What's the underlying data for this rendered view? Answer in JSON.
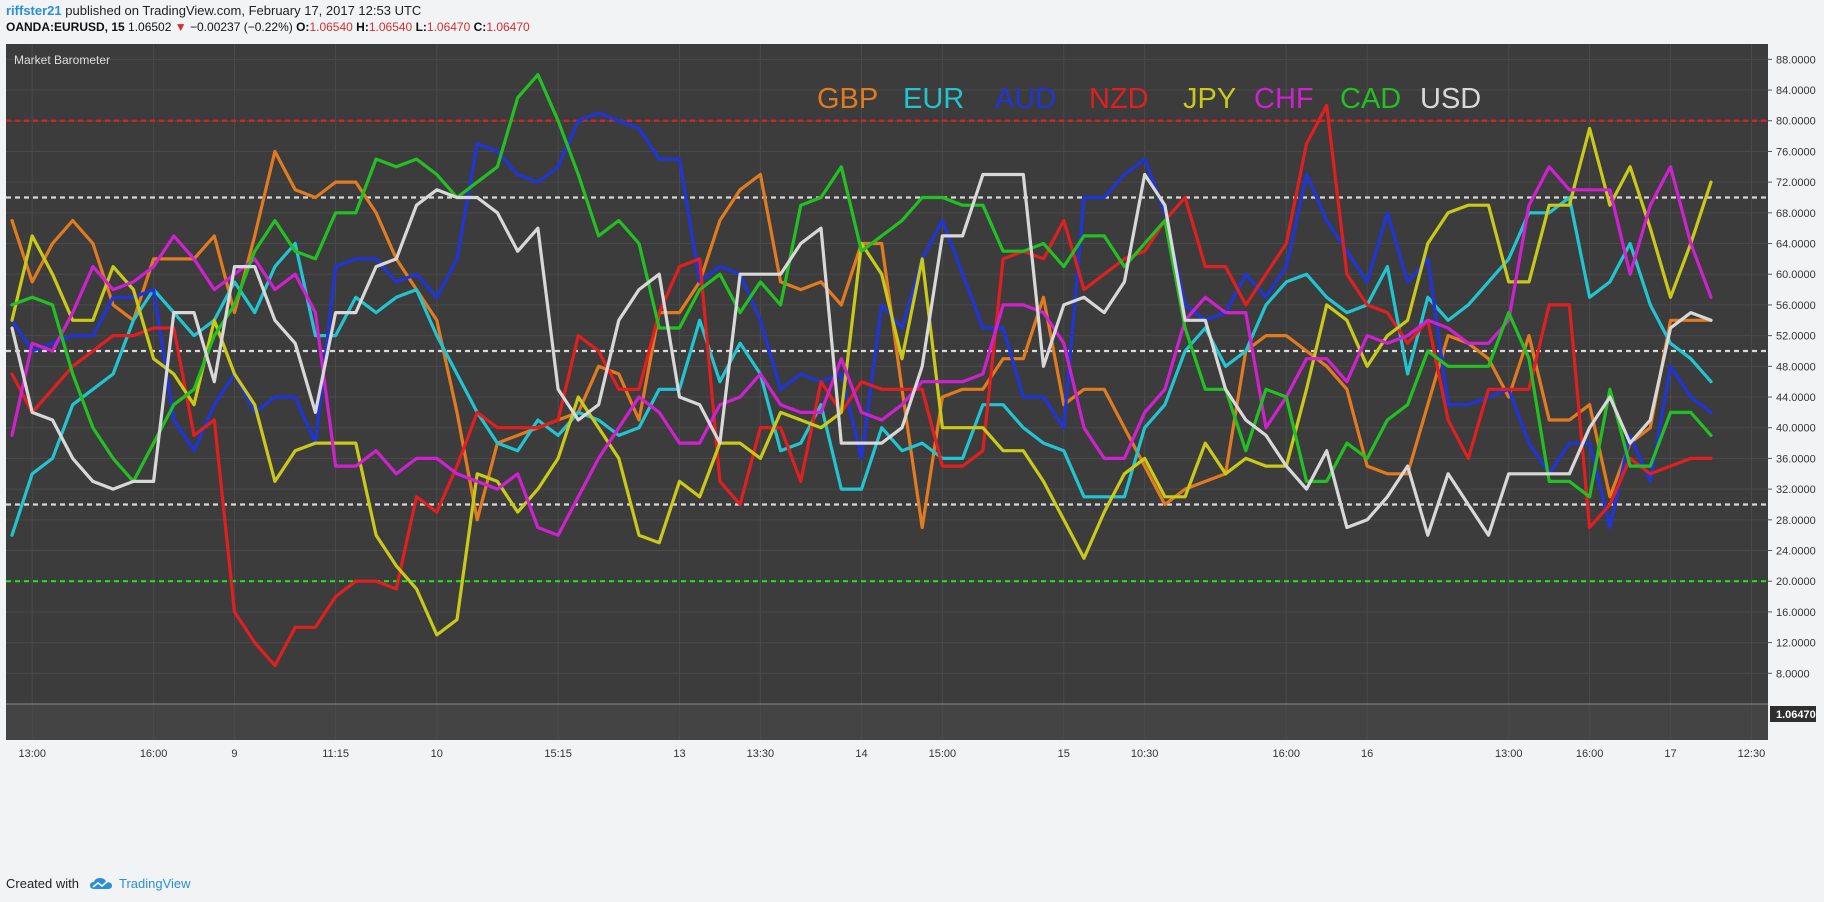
{
  "header": {
    "user": "riffster21",
    "published_text": "published on TradingView.com, February 17, 2017 12:53 UTC",
    "symbol": "OANDA:EURUSD, 15",
    "price": "1.06502",
    "down_arrow": "▼",
    "change": "−0.00237 (−0.22%)",
    "o_label": "O:",
    "o_val": "1.06540",
    "h_label": "H:",
    "h_val": "1.06540",
    "l_label": "L:",
    "l_val": "1.06470",
    "c_label": "C:",
    "c_val": "1.06470"
  },
  "footer": {
    "created_with": "Created with",
    "brand": "TradingView"
  },
  "colors": {
    "background": "#3c3c3c",
    "grid": "#4a4a4a",
    "axis_panel": "#f1f3f5",
    "line_80": "#e02020",
    "line_70_50_30": "#d8d8d8",
    "line_20": "#22dd22"
  },
  "chart_data": {
    "type": "line",
    "title": "Market Barometer",
    "price_tag": "1.06470",
    "ylim": [
      4,
      90
    ],
    "y_ticks": [
      "8.0000",
      "12.0000",
      "16.0000",
      "20.0000",
      "24.0000",
      "28.0000",
      "32.0000",
      "36.0000",
      "40.0000",
      "44.0000",
      "48.0000",
      "52.0000",
      "56.0000",
      "60.0000",
      "64.0000",
      "68.0000",
      "72.0000",
      "76.0000",
      "80.0000",
      "84.0000",
      "88.0000"
    ],
    "x_tick_labels": [
      "13:00",
      "16:00",
      "9",
      "11:15",
      "10",
      "15:15",
      "13",
      "13:30",
      "14",
      "15:00",
      "15",
      "10:30",
      "16:00",
      "16",
      "13:00",
      "16:00",
      "17",
      "12:30"
    ],
    "x_tick_index": [
      1,
      7,
      11,
      16,
      21,
      27,
      33,
      37,
      42,
      46,
      52,
      56,
      63,
      67,
      74,
      78,
      82,
      86
    ],
    "reference_lines": [
      80,
      70,
      50,
      30,
      20
    ],
    "series": [
      {
        "name": "GBP",
        "color": "#e07b20",
        "values": [
          67,
          59,
          64,
          67,
          64,
          56,
          54,
          62,
          62,
          62,
          65,
          55,
          65,
          76,
          71,
          70,
          72,
          72,
          68,
          62,
          58,
          54,
          42,
          28,
          38,
          39,
          40,
          41,
          42,
          48,
          47,
          41,
          55,
          55,
          59,
          67,
          71,
          73,
          59,
          58,
          59,
          56,
          64,
          64,
          45,
          27,
          44,
          45,
          45,
          49,
          49,
          57,
          43,
          45,
          45,
          40,
          35,
          30,
          32,
          33,
          34,
          50,
          52,
          52,
          50,
          48,
          45,
          35,
          34,
          34,
          43,
          52,
          51,
          49,
          44,
          52,
          41,
          41,
          43,
          31,
          38,
          40,
          54,
          54,
          54
        ]
      },
      {
        "name": "EUR",
        "color": "#22c4d0",
        "values": [
          26,
          34,
          36,
          43,
          45,
          47,
          54,
          58,
          55,
          52,
          54,
          59,
          55,
          61,
          64,
          52,
          52,
          57,
          55,
          57,
          58,
          52,
          47,
          42,
          38,
          37,
          41,
          39,
          42,
          41,
          39,
          40,
          45,
          45,
          54,
          46,
          51,
          47,
          37,
          38,
          43,
          32,
          32,
          40,
          37,
          38,
          36,
          36,
          43,
          43,
          40,
          38,
          37,
          31,
          31,
          31,
          40,
          43,
          50,
          53,
          48,
          50,
          56,
          59,
          60,
          57,
          55,
          56,
          61,
          47,
          57,
          54,
          56,
          59,
          62,
          68,
          68,
          70,
          57,
          59,
          64,
          56,
          51,
          49,
          46
        ]
      },
      {
        "name": "AUD",
        "color": "#2035d8",
        "values": [
          54,
          50,
          51,
          52,
          52,
          57,
          57,
          58,
          41,
          37,
          43,
          47,
          42,
          44,
          44,
          38,
          61,
          62,
          62,
          59,
          60,
          57,
          62,
          77,
          76,
          73,
          72,
          74,
          80,
          81,
          80,
          79,
          75,
          75,
          59,
          61,
          60,
          54,
          45,
          47,
          46,
          47,
          36,
          56,
          53,
          62,
          67,
          60,
          53,
          53,
          44,
          44,
          40,
          70,
          70,
          73,
          75,
          68,
          56,
          54,
          55,
          60,
          57,
          61,
          73,
          67,
          63,
          59,
          68,
          59,
          62,
          43,
          43,
          44,
          45,
          38,
          34,
          38,
          38,
          27,
          39,
          33,
          48,
          44,
          42
        ]
      },
      {
        "name": "NZD",
        "color": "#e02020",
        "values": [
          47,
          42,
          45,
          48,
          50,
          52,
          52,
          53,
          53,
          39,
          41,
          16,
          12,
          9,
          14,
          14,
          18,
          20,
          20,
          19,
          31,
          29,
          35,
          42,
          40,
          40,
          40,
          41,
          52,
          50,
          45,
          45,
          55,
          61,
          62,
          33,
          30,
          40,
          40,
          33,
          46,
          42,
          46,
          45,
          45,
          45,
          35,
          35,
          37,
          62,
          63,
          62,
          67,
          58,
          60,
          62,
          63,
          67,
          70,
          61,
          61,
          56,
          60,
          64,
          77,
          82,
          60,
          56,
          55,
          51,
          54,
          41,
          36,
          45,
          45,
          45,
          56,
          56,
          27,
          30,
          36,
          34,
          35,
          36,
          36
        ]
      },
      {
        "name": "JPY",
        "color": "#c9c919",
        "values": [
          54,
          65,
          60,
          54,
          54,
          61,
          58,
          49,
          47,
          43,
          54,
          47,
          43,
          33,
          37,
          38,
          38,
          38,
          26,
          22,
          19,
          13,
          15,
          34,
          33,
          29,
          32,
          36,
          44,
          40,
          36,
          26,
          25,
          33,
          31,
          38,
          38,
          36,
          42,
          41,
          40,
          42,
          64,
          60,
          49,
          62,
          40,
          40,
          40,
          37,
          37,
          33,
          28,
          23,
          29,
          34,
          36,
          31,
          31,
          38,
          34,
          36,
          35,
          35,
          45,
          56,
          54,
          48,
          52,
          54,
          64,
          68,
          69,
          69,
          59,
          59,
          69,
          69,
          79,
          69,
          74,
          66,
          57,
          64,
          72
        ]
      },
      {
        "name": "CHF",
        "color": "#cf22cf",
        "values": [
          39,
          51,
          50,
          55,
          61,
          58,
          59,
          61,
          65,
          62,
          58,
          60,
          62,
          58,
          60,
          55,
          35,
          35,
          37,
          34,
          36,
          36,
          34,
          33,
          32,
          34,
          27,
          26,
          31,
          36,
          40,
          44,
          42,
          38,
          38,
          43,
          44,
          47,
          43,
          42,
          42,
          49,
          42,
          41,
          43,
          46,
          46,
          46,
          47,
          56,
          56,
          55,
          51,
          40,
          36,
          36,
          42,
          45,
          54,
          57,
          55,
          55,
          40,
          44,
          49,
          49,
          46,
          52,
          51,
          52,
          54,
          53,
          51,
          51,
          54,
          69,
          74,
          71,
          71,
          71,
          60,
          69,
          74,
          64,
          57
        ]
      },
      {
        "name": "CAD",
        "color": "#22c022",
        "values": [
          56,
          57,
          56,
          47,
          40,
          36,
          33,
          38,
          43,
          45,
          52,
          56,
          63,
          67,
          63,
          62,
          68,
          68,
          75,
          74,
          75,
          73,
          70,
          72,
          74,
          83,
          86,
          80,
          73,
          65,
          67,
          64,
          53,
          53,
          58,
          60,
          55,
          59,
          56,
          69,
          70,
          74,
          63,
          65,
          67,
          70,
          70,
          69,
          69,
          63,
          63,
          64,
          61,
          65,
          65,
          61,
          64,
          67,
          53,
          45,
          45,
          37,
          45,
          44,
          33,
          33,
          38,
          36,
          41,
          43,
          50,
          48,
          48,
          48,
          55,
          49,
          33,
          33,
          31,
          45,
          35,
          35,
          42,
          42,
          39
        ]
      },
      {
        "name": "USD",
        "color": "#d8d8d8",
        "values": [
          53,
          42,
          41,
          36,
          33,
          32,
          33,
          33,
          55,
          55,
          46,
          61,
          61,
          54,
          51,
          42,
          55,
          55,
          61,
          62,
          69,
          71,
          70,
          70,
          68,
          63,
          66,
          45,
          41,
          43,
          54,
          58,
          60,
          44,
          43,
          38,
          60,
          60,
          60,
          64,
          66,
          38,
          38,
          38,
          40,
          48,
          65,
          65,
          73,
          73,
          73,
          48,
          56,
          57,
          55,
          59,
          73,
          69,
          54,
          54,
          45,
          41,
          39,
          35,
          32,
          37,
          27,
          28,
          31,
          35,
          26,
          34,
          30,
          26,
          34,
          34,
          34,
          34,
          40,
          44,
          38,
          41,
          53,
          55,
          54
        ]
      }
    ]
  }
}
